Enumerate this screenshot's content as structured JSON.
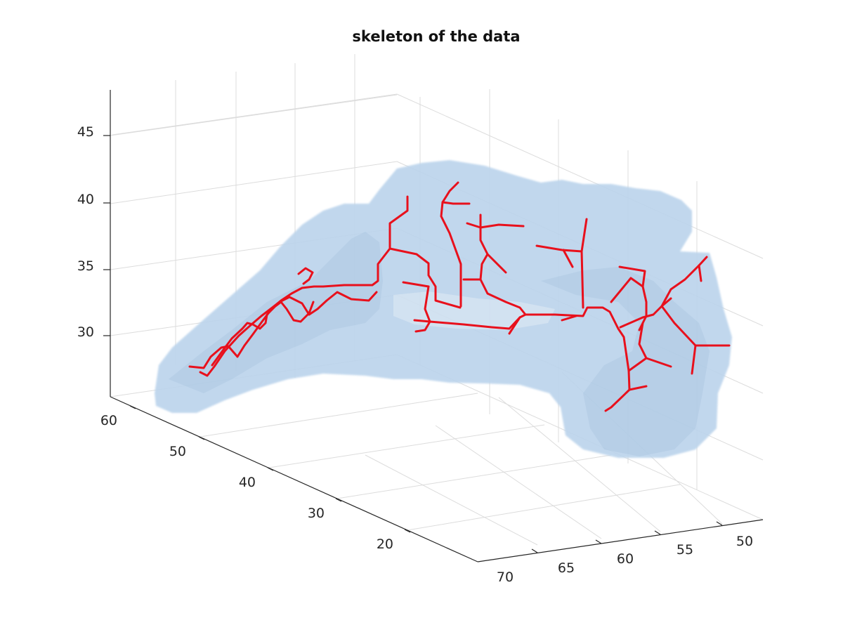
{
  "chart_data": {
    "type": "3d-surface-with-lines",
    "title": "skeleton of the data",
    "xlabel": "",
    "ylabel": "",
    "zlabel": "",
    "z_ticks": [
      "30",
      "35",
      "40",
      "45"
    ],
    "y_ticks": [
      "60",
      "50",
      "40",
      "30",
      "20"
    ],
    "x_ticks": [
      "70",
      "65",
      "60",
      "55",
      "50"
    ],
    "grid": true,
    "surface_color": "#bcd4ec",
    "skeleton_color": "#e8101c",
    "description_series": [
      {
        "name": "",
        "kind": "isosurface"
      },
      {
        "name": "",
        "kind": "skeleton"
      }
    ]
  }
}
